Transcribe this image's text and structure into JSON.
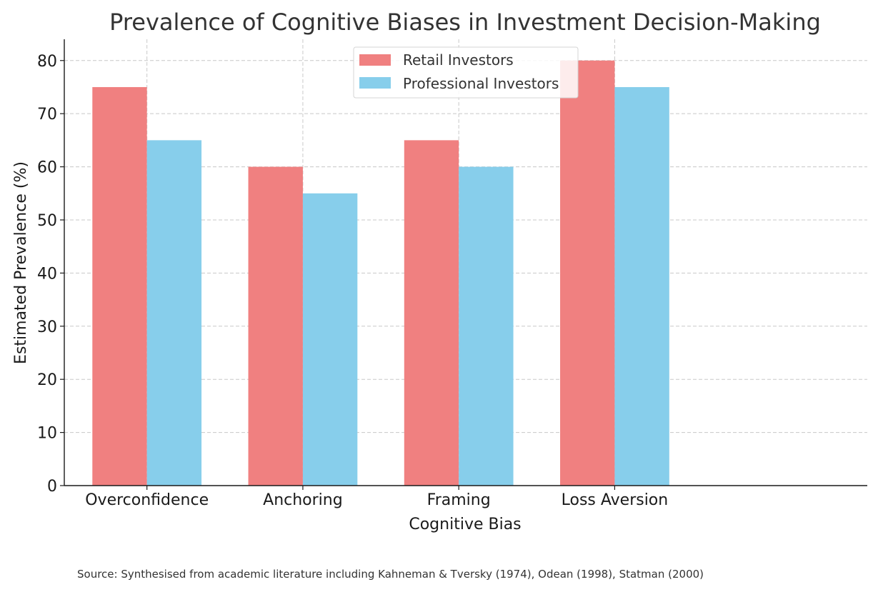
{
  "chart_data": {
    "type": "bar",
    "title": "Prevalence of Cognitive Biases in Investment Decision-Making",
    "xlabel": "Cognitive Bias",
    "ylabel": "Estimated Prevalence (%)",
    "categories": [
      "Overconfidence",
      "Anchoring",
      "Framing",
      "Loss Aversion"
    ],
    "series": [
      {
        "name": "Retail Investors",
        "values": [
          75,
          60,
          65,
          80
        ],
        "color": "#f08080"
      },
      {
        "name": "Professional Investors",
        "values": [
          65,
          55,
          60,
          75
        ],
        "color": "#87ceeb"
      }
    ],
    "ylim": [
      0,
      84
    ],
    "yticks": [
      0,
      10,
      20,
      30,
      40,
      50,
      60,
      70,
      80
    ],
    "grid": true,
    "legend": "top-center",
    "source": "Source: Synthesised from academic literature including Kahneman & Tversky (1974), Odean (1998), Statman (2000)"
  }
}
